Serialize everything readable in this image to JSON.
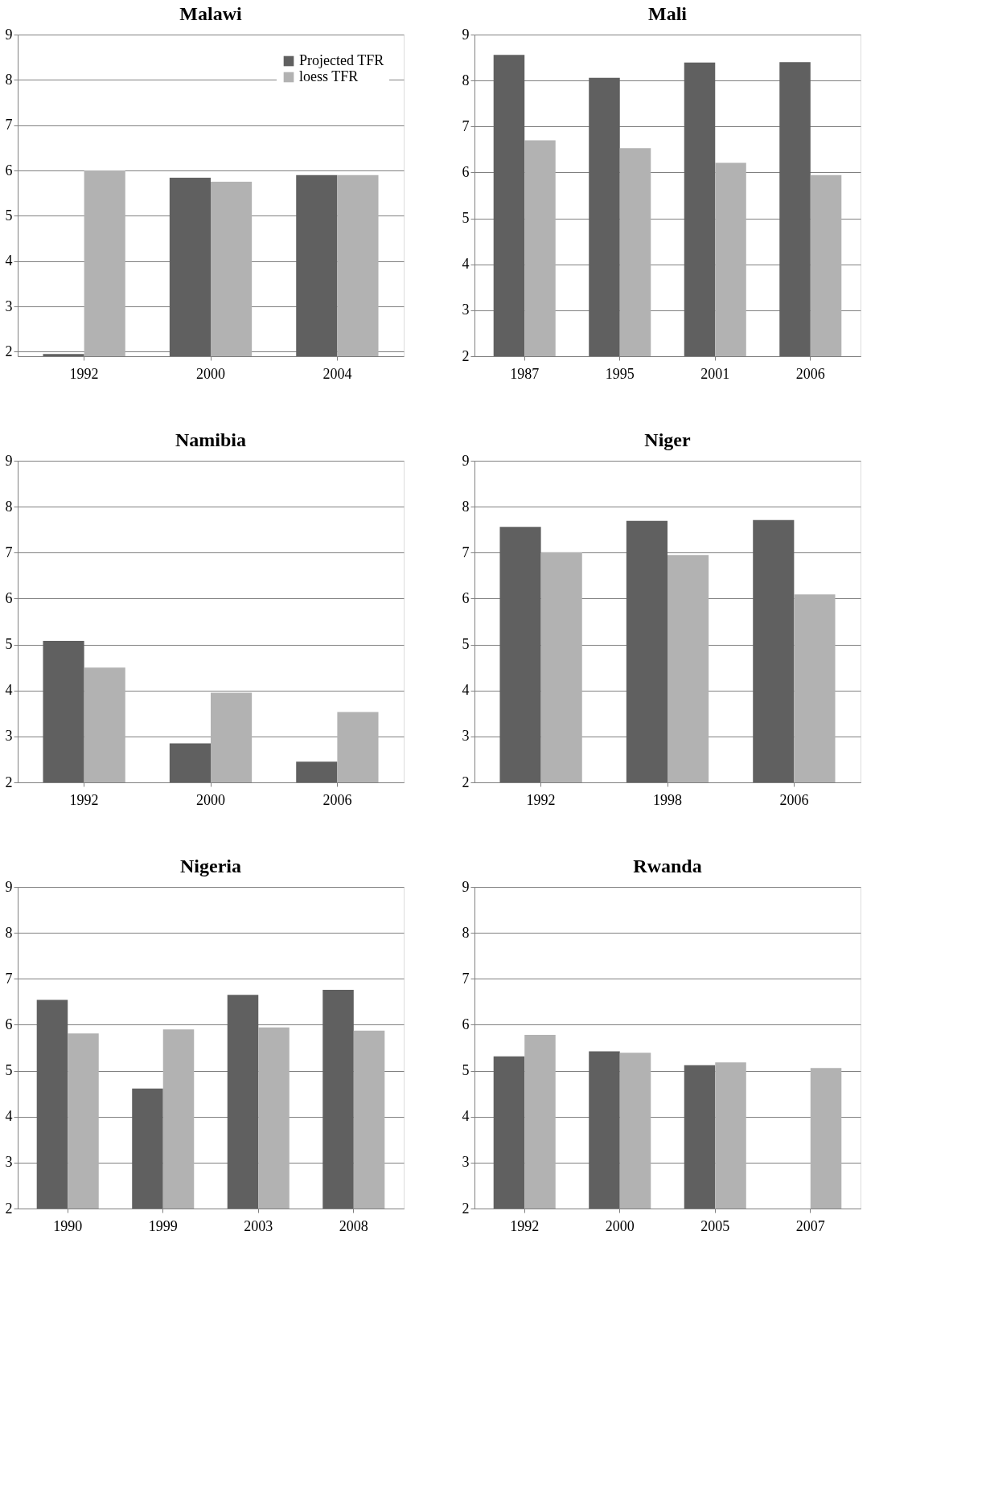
{
  "chart_data": [
    {
      "type": "bar",
      "title": "Malawi",
      "categories": [
        "1992",
        "2000",
        "2004"
      ],
      "series": [
        {
          "name": "Projected TFR",
          "color": "#606060",
          "values": [
            1.95,
            5.84,
            5.9
          ]
        },
        {
          "name": "loess TFR",
          "color": "#b2b2b2",
          "values": [
            6.0,
            5.75,
            5.9
          ]
        }
      ],
      "ylim": [
        1.9,
        9
      ],
      "yticks": [
        2,
        3,
        4,
        5,
        6,
        7,
        8,
        9
      ],
      "grid": "y",
      "legend": "top right"
    },
    {
      "type": "bar",
      "title": "Mali",
      "categories": [
        "1987",
        "1995",
        "2001",
        "2006"
      ],
      "series": [
        {
          "color": "#606060",
          "values": [
            8.56,
            8.06,
            8.39,
            8.4
          ]
        },
        {
          "color": "#b2b2b2",
          "values": [
            6.7,
            6.53,
            6.21,
            5.94
          ]
        }
      ],
      "ylim": [
        2,
        9
      ],
      "yticks": [
        2,
        3,
        4,
        5,
        6,
        7,
        8,
        9
      ],
      "grid": "y"
    },
    {
      "type": "bar",
      "title": "Namibia",
      "categories": [
        "1992",
        "2000",
        "2006"
      ],
      "series": [
        {
          "color": "#606060",
          "values": [
            5.08,
            2.85,
            2.45
          ]
        },
        {
          "color": "#b2b2b2",
          "values": [
            4.5,
            3.95,
            3.53
          ]
        }
      ],
      "ylim": [
        2,
        9
      ],
      "yticks": [
        2,
        3,
        4,
        5,
        6,
        7,
        8,
        9
      ],
      "grid": "y"
    },
    {
      "type": "bar",
      "title": "Niger",
      "categories": [
        "1992",
        "1998",
        "2006"
      ],
      "series": [
        {
          "color": "#606060",
          "values": [
            7.56,
            7.69,
            7.71
          ]
        },
        {
          "color": "#b2b2b2",
          "values": [
            7.01,
            6.95,
            6.09
          ]
        }
      ],
      "ylim": [
        2,
        9
      ],
      "yticks": [
        2,
        3,
        4,
        5,
        6,
        7,
        8,
        9
      ],
      "grid": "y"
    },
    {
      "type": "bar",
      "title": "Nigeria",
      "categories": [
        "1990",
        "1999",
        "2003",
        "2008"
      ],
      "series": [
        {
          "color": "#606060",
          "values": [
            6.54,
            4.61,
            6.65,
            6.76
          ]
        },
        {
          "color": "#b2b2b2",
          "values": [
            5.81,
            5.9,
            5.94,
            5.87
          ]
        }
      ],
      "ylim": [
        2,
        9
      ],
      "yticks": [
        2,
        3,
        4,
        5,
        6,
        7,
        8,
        9
      ],
      "grid": "y"
    },
    {
      "type": "bar",
      "title": "Rwanda",
      "categories": [
        "1992",
        "2000",
        "2005",
        "2007"
      ],
      "series": [
        {
          "color": "#606060",
          "values": [
            5.31,
            5.42,
            5.12,
            null
          ]
        },
        {
          "color": "#b2b2b2",
          "values": [
            5.78,
            5.39,
            5.18,
            5.06
          ]
        }
      ],
      "ylim": [
        2,
        9
      ],
      "yticks": [
        2,
        3,
        4,
        5,
        6,
        7,
        8,
        9
      ],
      "grid": "y"
    }
  ]
}
